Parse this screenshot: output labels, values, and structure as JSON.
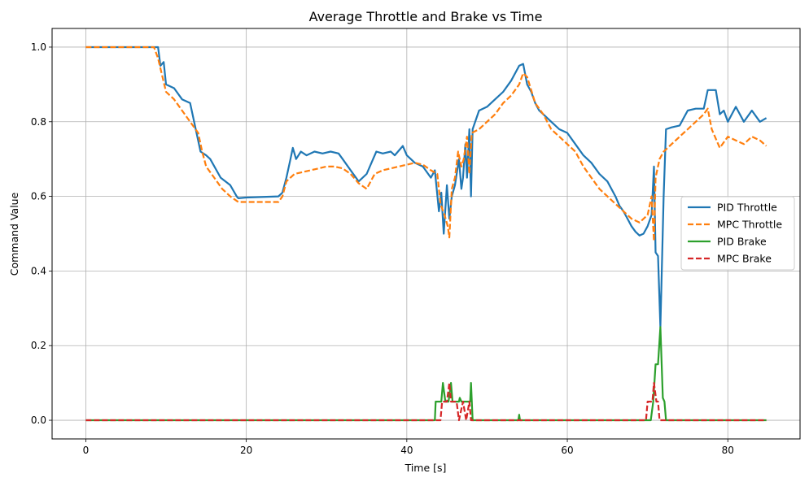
{
  "chart_data": {
    "type": "line",
    "title": "Average Throttle and Brake vs Time",
    "xlabel": "Time [s]",
    "ylabel": "Command Value",
    "xlim": [
      -4.2,
      89.0
    ],
    "ylim": [
      -0.05,
      1.05
    ],
    "xticks": [
      0,
      20,
      40,
      60,
      80
    ],
    "yticks": [
      0.0,
      0.2,
      0.4,
      0.6,
      0.8,
      1.0
    ],
    "grid": true,
    "legend_position": "center-right",
    "series": [
      {
        "name": "PID Throttle",
        "color": "#1f77b4",
        "dash": "solid",
        "points": [
          [
            0,
            1.0
          ],
          [
            9,
            1.0
          ],
          [
            9.3,
            0.95
          ],
          [
            9.7,
            0.96
          ],
          [
            10,
            0.9
          ],
          [
            11,
            0.89
          ],
          [
            12,
            0.86
          ],
          [
            13,
            0.85
          ],
          [
            13.6,
            0.79
          ],
          [
            14.3,
            0.72
          ],
          [
            15,
            0.71
          ],
          [
            15.5,
            0.7
          ],
          [
            16.8,
            0.65
          ],
          [
            18,
            0.63
          ],
          [
            18.8,
            0.6
          ],
          [
            19,
            0.595
          ],
          [
            20,
            0.597
          ],
          [
            24,
            0.6
          ],
          [
            24.5,
            0.61
          ],
          [
            25,
            0.65
          ],
          [
            25.5,
            0.7
          ],
          [
            25.8,
            0.73
          ],
          [
            26.2,
            0.7
          ],
          [
            26.8,
            0.72
          ],
          [
            27.5,
            0.71
          ],
          [
            28.5,
            0.72
          ],
          [
            29.5,
            0.715
          ],
          [
            30.5,
            0.72
          ],
          [
            31.5,
            0.715
          ],
          [
            32,
            0.7
          ],
          [
            33,
            0.67
          ],
          [
            34,
            0.64
          ],
          [
            35,
            0.66
          ],
          [
            35.8,
            0.7
          ],
          [
            36.2,
            0.72
          ],
          [
            37,
            0.715
          ],
          [
            38,
            0.72
          ],
          [
            38.5,
            0.71
          ],
          [
            39.5,
            0.735
          ],
          [
            40,
            0.71
          ],
          [
            41,
            0.69
          ],
          [
            42,
            0.68
          ],
          [
            43,
            0.65
          ],
          [
            43.5,
            0.67
          ],
          [
            44,
            0.56
          ],
          [
            44.3,
            0.61
          ],
          [
            44.6,
            0.5
          ],
          [
            45,
            0.63
          ],
          [
            45.3,
            0.54
          ],
          [
            45.6,
            0.6
          ],
          [
            46,
            0.63
          ],
          [
            46.5,
            0.7
          ],
          [
            46.8,
            0.62
          ],
          [
            47,
            0.65
          ],
          [
            47.3,
            0.74
          ],
          [
            47.5,
            0.65
          ],
          [
            47.8,
            0.78
          ],
          [
            48,
            0.6
          ],
          [
            48.2,
            0.78
          ],
          [
            49,
            0.83
          ],
          [
            50,
            0.84
          ],
          [
            51,
            0.86
          ],
          [
            52,
            0.88
          ],
          [
            53,
            0.91
          ],
          [
            54,
            0.95
          ],
          [
            54.5,
            0.955
          ],
          [
            55,
            0.9
          ],
          [
            55.5,
            0.88
          ],
          [
            56,
            0.85
          ],
          [
            56.5,
            0.83
          ],
          [
            57,
            0.82
          ],
          [
            58,
            0.8
          ],
          [
            59,
            0.78
          ],
          [
            60,
            0.77
          ],
          [
            61,
            0.74
          ],
          [
            62,
            0.71
          ],
          [
            63,
            0.69
          ],
          [
            64,
            0.66
          ],
          [
            65,
            0.64
          ],
          [
            66,
            0.6
          ],
          [
            66.5,
            0.575
          ],
          [
            67,
            0.56
          ],
          [
            67.5,
            0.54
          ],
          [
            68,
            0.52
          ],
          [
            68.5,
            0.505
          ],
          [
            69,
            0.495
          ],
          [
            69.5,
            0.5
          ],
          [
            70,
            0.52
          ],
          [
            70.5,
            0.55
          ],
          [
            70.8,
            0.68
          ],
          [
            71,
            0.45
          ],
          [
            71.3,
            0.44
          ],
          [
            71.6,
            0.25
          ],
          [
            72,
            0.6
          ],
          [
            72.3,
            0.78
          ],
          [
            73,
            0.785
          ],
          [
            74,
            0.79
          ],
          [
            74.5,
            0.81
          ],
          [
            75,
            0.83
          ],
          [
            76,
            0.835
          ],
          [
            77,
            0.835
          ],
          [
            77.5,
            0.885
          ],
          [
            78.5,
            0.885
          ],
          [
            79,
            0.82
          ],
          [
            79.5,
            0.83
          ],
          [
            80,
            0.8
          ],
          [
            81,
            0.84
          ],
          [
            82,
            0.8
          ],
          [
            83,
            0.83
          ],
          [
            84,
            0.8
          ],
          [
            84.8,
            0.81
          ]
        ]
      },
      {
        "name": "MPC Throttle",
        "color": "#ff7f0e",
        "dash": "dashed",
        "points": [
          [
            0,
            1.0
          ],
          [
            8.5,
            1.0
          ],
          [
            9,
            0.97
          ],
          [
            10,
            0.88
          ],
          [
            11,
            0.86
          ],
          [
            12,
            0.83
          ],
          [
            13,
            0.8
          ],
          [
            14,
            0.77
          ],
          [
            14.5,
            0.72
          ],
          [
            15,
            0.68
          ],
          [
            16,
            0.65
          ],
          [
            17,
            0.62
          ],
          [
            18,
            0.6
          ],
          [
            19,
            0.585
          ],
          [
            20,
            0.585
          ],
          [
            24,
            0.585
          ],
          [
            24.5,
            0.6
          ],
          [
            25,
            0.64
          ],
          [
            26,
            0.66
          ],
          [
            27,
            0.665
          ],
          [
            28,
            0.67
          ],
          [
            29,
            0.675
          ],
          [
            30,
            0.68
          ],
          [
            31,
            0.68
          ],
          [
            32,
            0.675
          ],
          [
            33,
            0.66
          ],
          [
            34,
            0.635
          ],
          [
            35,
            0.62
          ],
          [
            36,
            0.66
          ],
          [
            37,
            0.67
          ],
          [
            38,
            0.675
          ],
          [
            39,
            0.68
          ],
          [
            40,
            0.685
          ],
          [
            41,
            0.69
          ],
          [
            42,
            0.685
          ],
          [
            43,
            0.67
          ],
          [
            43.8,
            0.66
          ],
          [
            44.2,
            0.58
          ],
          [
            44.7,
            0.55
          ],
          [
            45.1,
            0.52
          ],
          [
            45.3,
            0.49
          ],
          [
            45.6,
            0.62
          ],
          [
            46,
            0.65
          ],
          [
            46.4,
            0.72
          ],
          [
            46.8,
            0.68
          ],
          [
            47.1,
            0.7
          ],
          [
            47.5,
            0.76
          ],
          [
            47.8,
            0.66
          ],
          [
            48.1,
            0.77
          ],
          [
            49,
            0.78
          ],
          [
            50,
            0.8
          ],
          [
            51,
            0.82
          ],
          [
            52,
            0.85
          ],
          [
            53,
            0.87
          ],
          [
            54,
            0.9
          ],
          [
            54.5,
            0.93
          ],
          [
            55,
            0.92
          ],
          [
            56,
            0.85
          ],
          [
            57,
            0.82
          ],
          [
            58,
            0.78
          ],
          [
            59,
            0.76
          ],
          [
            60,
            0.74
          ],
          [
            61,
            0.72
          ],
          [
            62,
            0.68
          ],
          [
            63,
            0.65
          ],
          [
            64,
            0.62
          ],
          [
            65,
            0.6
          ],
          [
            66,
            0.58
          ],
          [
            67,
            0.56
          ],
          [
            68,
            0.54
          ],
          [
            69,
            0.53
          ],
          [
            70,
            0.55
          ],
          [
            70.5,
            0.6
          ],
          [
            70.8,
            0.48
          ],
          [
            71,
            0.65
          ],
          [
            71.5,
            0.7
          ],
          [
            72,
            0.72
          ],
          [
            73,
            0.74
          ],
          [
            74,
            0.76
          ],
          [
            75,
            0.78
          ],
          [
            76,
            0.8
          ],
          [
            77,
            0.82
          ],
          [
            77.5,
            0.835
          ],
          [
            78,
            0.78
          ],
          [
            79,
            0.73
          ],
          [
            80,
            0.76
          ],
          [
            81,
            0.75
          ],
          [
            82,
            0.74
          ],
          [
            83,
            0.76
          ],
          [
            84,
            0.75
          ],
          [
            84.8,
            0.735
          ]
        ]
      },
      {
        "name": "PID Brake",
        "color": "#2ca02c",
        "dash": "solid",
        "points": [
          [
            0,
            0
          ],
          [
            43.5,
            0
          ],
          [
            43.6,
            0.05
          ],
          [
            44.3,
            0.05
          ],
          [
            44.5,
            0.1
          ],
          [
            44.8,
            0.05
          ],
          [
            45.2,
            0.05
          ],
          [
            45.5,
            0.1
          ],
          [
            45.7,
            0.05
          ],
          [
            46.5,
            0.05
          ],
          [
            46.6,
            0.06
          ],
          [
            46.8,
            0.05
          ],
          [
            47.2,
            0.05
          ],
          [
            47.4,
            0.05
          ],
          [
            47.9,
            0.05
          ],
          [
            48,
            0.1
          ],
          [
            48.2,
            0
          ],
          [
            53.9,
            0
          ],
          [
            54,
            0.015
          ],
          [
            54.1,
            0
          ],
          [
            70.4,
            0
          ],
          [
            70.7,
            0.05
          ],
          [
            71,
            0.15
          ],
          [
            71.3,
            0.15
          ],
          [
            71.6,
            0.25
          ],
          [
            71.9,
            0.06
          ],
          [
            72.1,
            0.05
          ],
          [
            72.3,
            0
          ],
          [
            84.8,
            0
          ]
        ]
      },
      {
        "name": "MPC Brake",
        "color": "#d62728",
        "dash": "dashed",
        "points": [
          [
            0,
            0
          ],
          [
            44.2,
            0
          ],
          [
            44.4,
            0.05
          ],
          [
            45,
            0.05
          ],
          [
            45.3,
            0.1
          ],
          [
            45.5,
            0.05
          ],
          [
            46.2,
            0.05
          ],
          [
            46.5,
            0
          ],
          [
            47,
            0.05
          ],
          [
            47.4,
            0
          ],
          [
            47.8,
            0.05
          ],
          [
            48,
            0
          ],
          [
            69.8,
            0
          ],
          [
            70,
            0.05
          ],
          [
            70.6,
            0.05
          ],
          [
            70.8,
            0.1
          ],
          [
            71.1,
            0.05
          ],
          [
            71.3,
            0.05
          ],
          [
            71.5,
            0
          ],
          [
            84.8,
            0
          ]
        ]
      }
    ]
  }
}
